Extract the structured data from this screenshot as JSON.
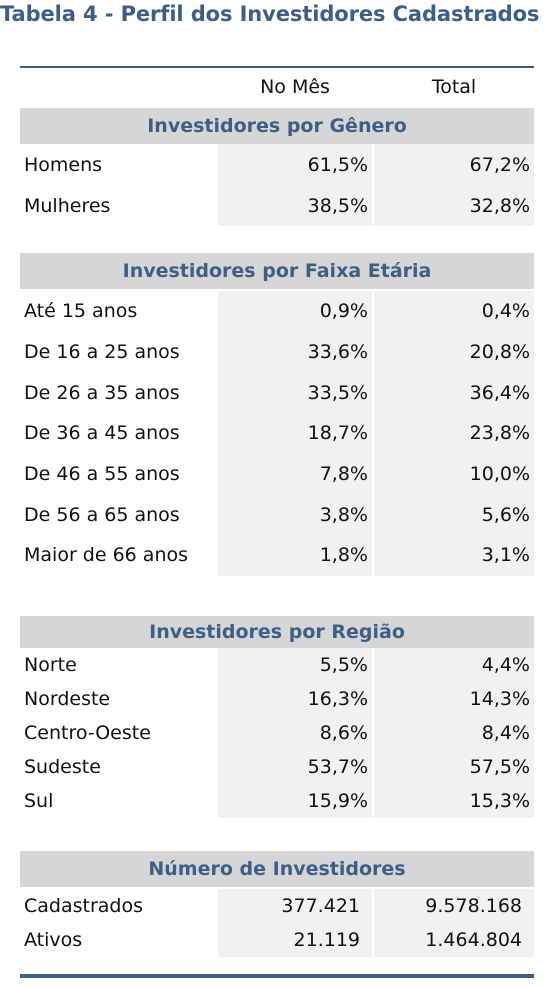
{
  "title": "Tabela 4 - Perfil dos Investidores Cadastrados",
  "columns": {
    "month": "No Mês",
    "total": "Total"
  },
  "sections": [
    {
      "header": "Investidores por Gênero",
      "rows": [
        {
          "label": "Homens",
          "month": "61,5%",
          "total": "67,2%"
        },
        {
          "label": "Mulheres",
          "month": "38,5%",
          "total": "32,8%"
        }
      ]
    },
    {
      "header": "Investidores por Faixa Etária",
      "rows": [
        {
          "label": "Até 15 anos",
          "month": "0,9%",
          "total": "0,4%"
        },
        {
          "label": "De 16 a 25 anos",
          "month": "33,6%",
          "total": "20,8%"
        },
        {
          "label": "De 26 a 35 anos",
          "month": "33,5%",
          "total": "36,4%"
        },
        {
          "label": "De 36 a 45 anos",
          "month": "18,7%",
          "total": "23,8%"
        },
        {
          "label": "De 46 a 55 anos",
          "month": "7,8%",
          "total": "10,0%"
        },
        {
          "label": "De 56 a 65 anos",
          "month": "3,8%",
          "total": "5,6%"
        },
        {
          "label": "Maior de 66 anos",
          "month": "1,8%",
          "total": "3,1%"
        }
      ]
    },
    {
      "header": "Investidores por Região",
      "rows": [
        {
          "label": "Norte",
          "month": "5,5%",
          "total": "4,4%"
        },
        {
          "label": "Nordeste",
          "month": "16,3%",
          "total": "14,3%"
        },
        {
          "label": "Centro-Oeste",
          "month": "8,6%",
          "total": "8,4%"
        },
        {
          "label": "Sudeste",
          "month": "53,7%",
          "total": "57,5%"
        },
        {
          "label": "Sul",
          "month": "15,9%",
          "total": "15,3%"
        }
      ]
    },
    {
      "header": "Número de Investidores",
      "rows": [
        {
          "label": "Cadastrados",
          "month": "377.421",
          "total": "9.578.168"
        },
        {
          "label": "Ativos",
          "month": "21.119",
          "total": "1.464.804"
        }
      ]
    }
  ]
}
